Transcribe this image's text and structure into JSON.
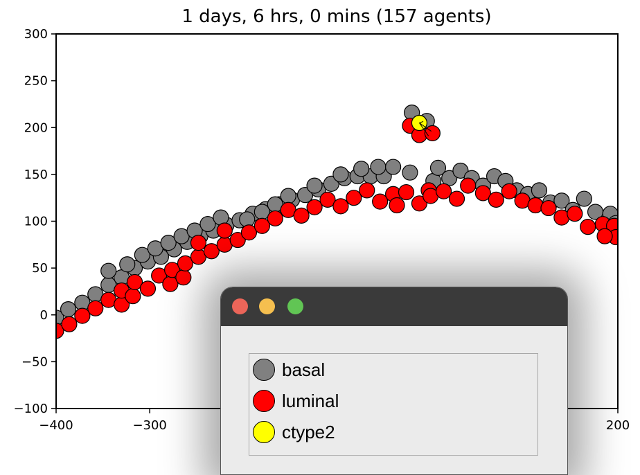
{
  "chart_data": {
    "type": "scatter",
    "title": "1 days, 6 hrs, 0 mins (157 agents)",
    "xlabel": "",
    "ylabel": "",
    "xlim": [
      -400,
      200
    ],
    "ylim": [
      -100,
      300
    ],
    "xticks": [
      -400,
      -300,
      -200,
      -100,
      0,
      100,
      200
    ],
    "yticks": [
      -100,
      -50,
      0,
      50,
      100,
      150,
      200,
      250,
      300
    ],
    "grid": false,
    "series": [
      {
        "name": "basal",
        "color": "#808080",
        "points": [
          [
            -400,
            -3
          ],
          [
            -387,
            6
          ],
          [
            -372,
            13
          ],
          [
            -358,
            22
          ],
          [
            -344,
            32
          ],
          [
            -330,
            40
          ],
          [
            -316,
            50
          ],
          [
            -302,
            57
          ],
          [
            -288,
            62
          ],
          [
            -274,
            70
          ],
          [
            -260,
            78
          ],
          [
            -246,
            84
          ],
          [
            -232,
            90
          ],
          [
            -218,
            96
          ],
          [
            -204,
            101
          ],
          [
            -190,
            108
          ],
          [
            -176,
            113
          ],
          [
            -162,
            118
          ],
          [
            -148,
            123
          ],
          [
            -134,
            128
          ],
          [
            -120,
            134
          ],
          [
            -106,
            140
          ],
          [
            -92,
            146
          ],
          [
            -78,
            148
          ],
          [
            -64,
            148
          ],
          [
            -50,
            148
          ],
          [
            -344,
            47
          ],
          [
            -324,
            54
          ],
          [
            -308,
            64
          ],
          [
            -294,
            71
          ],
          [
            -280,
            77
          ],
          [
            -266,
            84
          ],
          [
            -252,
            90
          ],
          [
            -238,
            97
          ],
          [
            -224,
            104
          ],
          [
            -196,
            102
          ],
          [
            -180,
            110
          ],
          [
            -166,
            118
          ],
          [
            -152,
            127
          ],
          [
            -124,
            138
          ],
          [
            -96,
            150
          ],
          [
            -74,
            156
          ],
          [
            -56,
            158
          ],
          [
            -40,
            158
          ],
          [
            -22,
            152
          ],
          [
            -20,
            216
          ],
          [
            -4,
            207
          ],
          [
            3,
            143
          ],
          [
            8,
            157
          ],
          [
            20,
            146
          ],
          [
            32,
            154
          ],
          [
            44,
            146
          ],
          [
            56,
            138
          ],
          [
            68,
            148
          ],
          [
            80,
            143
          ],
          [
            92,
            133
          ],
          [
            104,
            129
          ],
          [
            116,
            133
          ],
          [
            128,
            120
          ],
          [
            140,
            122
          ],
          [
            152,
            112
          ],
          [
            164,
            124
          ],
          [
            176,
            110
          ],
          [
            192,
            108
          ],
          [
            198,
            98
          ]
        ]
      },
      {
        "name": "luminal",
        "color": "#ff0000",
        "points": [
          [
            -400,
            -17
          ],
          [
            -386,
            -10
          ],
          [
            -372,
            -1
          ],
          [
            -358,
            7
          ],
          [
            -344,
            16
          ],
          [
            -330,
            11
          ],
          [
            -330,
            26
          ],
          [
            -318,
            20
          ],
          [
            -316,
            35
          ],
          [
            -302,
            28
          ],
          [
            -290,
            42
          ],
          [
            -278,
            33
          ],
          [
            -276,
            48
          ],
          [
            -264,
            40
          ],
          [
            -262,
            55
          ],
          [
            -248,
            62
          ],
          [
            -248,
            77
          ],
          [
            -234,
            68
          ],
          [
            -220,
            75
          ],
          [
            -220,
            90
          ],
          [
            -206,
            80
          ],
          [
            -194,
            88
          ],
          [
            -180,
            95
          ],
          [
            -166,
            103
          ],
          [
            -152,
            112
          ],
          [
            -138,
            106
          ],
          [
            -124,
            115
          ],
          [
            -110,
            123
          ],
          [
            -96,
            116
          ],
          [
            -82,
            125
          ],
          [
            -68,
            133
          ],
          [
            -54,
            121
          ],
          [
            -40,
            129
          ],
          [
            -26,
            131
          ],
          [
            -36,
            117
          ],
          [
            -12,
            119
          ],
          [
            -2,
            133
          ],
          [
            -22,
            202
          ],
          [
            -12,
            192
          ],
          [
            2,
            194
          ],
          [
            0,
            127
          ],
          [
            14,
            132
          ],
          [
            28,
            124
          ],
          [
            40,
            138
          ],
          [
            56,
            130
          ],
          [
            70,
            123
          ],
          [
            84,
            132
          ],
          [
            98,
            122
          ],
          [
            112,
            117
          ],
          [
            126,
            114
          ],
          [
            140,
            104
          ],
          [
            154,
            108
          ],
          [
            168,
            94
          ],
          [
            184,
            97
          ],
          [
            196,
            95
          ],
          [
            198,
            83
          ],
          [
            186,
            84
          ]
        ]
      },
      {
        "name": "ctype2",
        "color": "#ffff00",
        "points": [
          [
            -12,
            205
          ]
        ]
      }
    ],
    "legend": {
      "placement": "separate-window",
      "entries": [
        "basal",
        "luminal",
        "ctype2"
      ]
    }
  },
  "legend_window": {
    "buttons": [
      "close",
      "minimize",
      "maximize"
    ]
  }
}
